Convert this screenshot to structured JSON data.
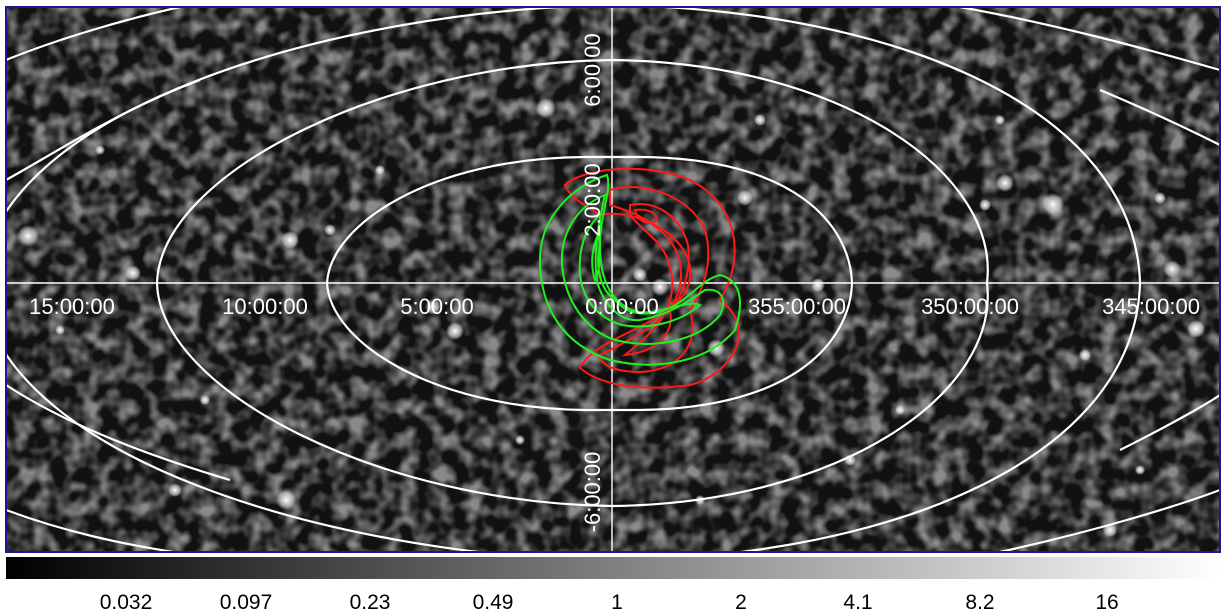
{
  "colors": {
    "background": "#111111",
    "frame": "#1a1a8c",
    "grid": "#ffffff",
    "contour_primary": "#ff1a1a",
    "contour_secondary": "#22ee22",
    "colorbar_low": "#000000",
    "colorbar_high": "#ffffff"
  },
  "map": {
    "projection": "aitoff-like all-sky grid",
    "longitude_labels": [
      "15:00:00",
      "10:00:00",
      "5:00:00",
      "0:00:00",
      "355:00:00",
      "350:00:00",
      "345:00:00"
    ],
    "latitude_labels": [
      "6:00:00",
      "2:00:00",
      "-6:00:00"
    ]
  },
  "colorbar": {
    "ticks": [
      "0.032",
      "0.097",
      "0.23",
      "0.49",
      "1",
      "2",
      "4.1",
      "8.2",
      "16"
    ]
  }
}
